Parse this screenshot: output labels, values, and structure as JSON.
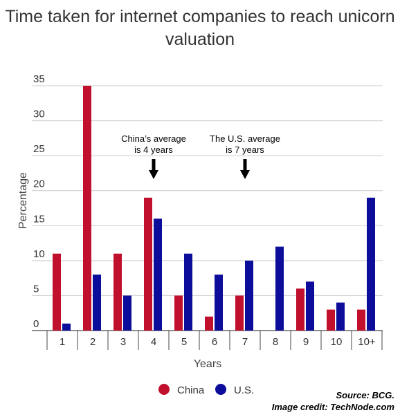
{
  "chart_data": {
    "type": "bar",
    "title": "Time taken for internet companies to reach unicorn valuation",
    "xlabel": "Years",
    "ylabel": "Percentage",
    "categories": [
      "1",
      "2",
      "3",
      "4",
      "5",
      "6",
      "7",
      "8",
      "9",
      "10",
      "10+"
    ],
    "series": [
      {
        "name": "China",
        "color": "#c0102e",
        "values": [
          11,
          35,
          11,
          19,
          5,
          2,
          5,
          0,
          6,
          3,
          3
        ]
      },
      {
        "name": "U.S.",
        "color": "#0d0d9c",
        "values": [
          1,
          8,
          5,
          16,
          11,
          8,
          10,
          12,
          7,
          4,
          19
        ]
      }
    ],
    "ylim": [
      0,
      35
    ],
    "yticks": [
      0,
      5,
      10,
      15,
      20,
      25,
      30,
      35
    ],
    "grid": true,
    "legend": "bottom",
    "annotations": [
      {
        "lines": [
          "China’s average",
          "is 4 years"
        ],
        "category": "4"
      },
      {
        "lines": [
          "The U.S. average",
          "is 7 years"
        ],
        "category": "7"
      }
    ]
  },
  "credits": {
    "source": "Source: BCG.",
    "image_credit": "Image credit: TechNode.com"
  }
}
